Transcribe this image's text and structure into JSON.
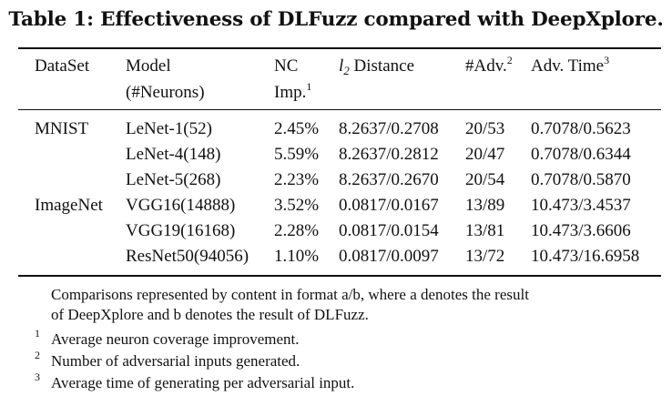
{
  "caption": "Table 1: Effectiveness of DLFuzz compared with DeepXplore.",
  "headers": {
    "dataset": "DataSet",
    "model": "Model",
    "model_sub": "(#Neurons)",
    "nc": "NC",
    "nc_sub": "Imp.",
    "nc_sup": "1",
    "l2_symbol": "l",
    "l2_index": "2",
    "l2_label": "Distance",
    "adv": "#Adv.",
    "adv_sup": "2",
    "time": "Adv. Time",
    "time_sup": "3"
  },
  "rows": [
    {
      "dataset": "MNIST",
      "model": "LeNet-1(52)",
      "nc": "2.45%",
      "l2": "8.2637/0.2708",
      "adv": "20/53",
      "time": "0.7078/0.5623"
    },
    {
      "dataset": "",
      "model": "LeNet-4(148)",
      "nc": "5.59%",
      "l2": "8.2637/0.2812",
      "adv": "20/47",
      "time": "0.7078/0.6344"
    },
    {
      "dataset": "",
      "model": "LeNet-5(268)",
      "nc": "2.23%",
      "l2": "8.2637/0.2670",
      "adv": "20/54",
      "time": "0.7078/0.5870"
    },
    {
      "dataset": "ImageNet",
      "model": "VGG16(14888)",
      "nc": "3.52%",
      "l2": "0.0817/0.0167",
      "adv": "13/89",
      "time": "10.473/3.4537"
    },
    {
      "dataset": "",
      "model": "VGG19(16168)",
      "nc": "2.28%",
      "l2": "0.0817/0.0154",
      "adv": "13/81",
      "time": "10.473/3.6606"
    },
    {
      "dataset": "",
      "model": "ResNet50(94056)",
      "nc": "1.10%",
      "l2": "0.0817/0.0097",
      "adv": "13/72",
      "time": "10.473/16.6958"
    }
  ],
  "notes": {
    "intro_line1": "Comparisons represented by content in format a/b, where a denotes the result",
    "intro_line2": "of DeepXplore and b denotes the result of DLFuzz.",
    "footnotes": [
      {
        "mark": "1",
        "text": "Average neuron coverage improvement."
      },
      {
        "mark": "2",
        "text": "Number of adversarial inputs generated."
      },
      {
        "mark": "3",
        "text": "Average time of generating per adversarial input."
      }
    ]
  }
}
